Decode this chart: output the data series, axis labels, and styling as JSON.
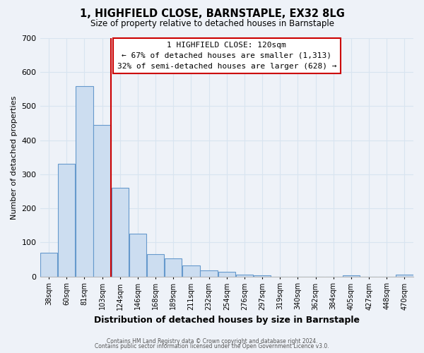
{
  "title": "1, HIGHFIELD CLOSE, BARNSTAPLE, EX32 8LG",
  "subtitle": "Size of property relative to detached houses in Barnstaple",
  "xlabel": "Distribution of detached houses by size in Barnstaple",
  "ylabel": "Number of detached properties",
  "bar_labels": [
    "38sqm",
    "60sqm",
    "81sqm",
    "103sqm",
    "124sqm",
    "146sqm",
    "168sqm",
    "189sqm",
    "211sqm",
    "232sqm",
    "254sqm",
    "276sqm",
    "297sqm",
    "319sqm",
    "340sqm",
    "362sqm",
    "384sqm",
    "405sqm",
    "427sqm",
    "448sqm",
    "470sqm"
  ],
  "bar_values": [
    70,
    330,
    560,
    445,
    260,
    125,
    65,
    53,
    32,
    18,
    13,
    5,
    4,
    0,
    0,
    0,
    0,
    3,
    0,
    0,
    5
  ],
  "bar_color": "#ccddf0",
  "bar_edge_color": "#6699cc",
  "grid_color": "#d8e4f0",
  "background_color": "#eef2f8",
  "vline_color": "#cc0000",
  "vline_index": 3.5,
  "ylim": [
    0,
    700
  ],
  "yticks": [
    0,
    100,
    200,
    300,
    400,
    500,
    600,
    700
  ],
  "annotation_title": "1 HIGHFIELD CLOSE: 120sqm",
  "annotation_line1": "← 67% of detached houses are smaller (1,313)",
  "annotation_line2": "32% of semi-detached houses are larger (628) →",
  "footer1": "Contains HM Land Registry data © Crown copyright and database right 2024.",
  "footer2": "Contains public sector information licensed under the Open Government Licence v3.0."
}
